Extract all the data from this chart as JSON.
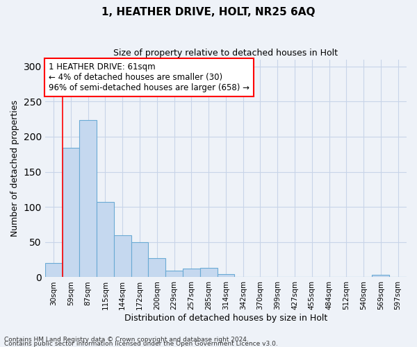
{
  "title1": "1, HEATHER DRIVE, HOLT, NR25 6AQ",
  "title2": "Size of property relative to detached houses in Holt",
  "xlabel": "Distribution of detached houses by size in Holt",
  "ylabel": "Number of detached properties",
  "bin_labels": [
    "30sqm",
    "59sqm",
    "87sqm",
    "115sqm",
    "144sqm",
    "172sqm",
    "200sqm",
    "229sqm",
    "257sqm",
    "285sqm",
    "314sqm",
    "342sqm",
    "370sqm",
    "399sqm",
    "427sqm",
    "455sqm",
    "484sqm",
    "512sqm",
    "540sqm",
    "569sqm",
    "597sqm"
  ],
  "bar_values": [
    20,
    184,
    224,
    107,
    60,
    50,
    27,
    9,
    12,
    13,
    4,
    0,
    0,
    0,
    0,
    0,
    0,
    0,
    0,
    3,
    0
  ],
  "bar_color": "#c5d8ef",
  "bar_edge_color": "#6aaad4",
  "grid_color": "#c8d4e8",
  "vline_x": 1,
  "vline_color": "red",
  "annotation_text": "1 HEATHER DRIVE: 61sqm\n← 4% of detached houses are smaller (30)\n96% of semi-detached houses are larger (658) →",
  "annotation_box_color": "white",
  "annotation_box_edge_color": "red",
  "ylim": [
    0,
    310
  ],
  "footnote1": "Contains HM Land Registry data © Crown copyright and database right 2024.",
  "footnote2": "Contains public sector information licensed under the Open Government Licence v3.0.",
  "background_color": "#eef2f8"
}
